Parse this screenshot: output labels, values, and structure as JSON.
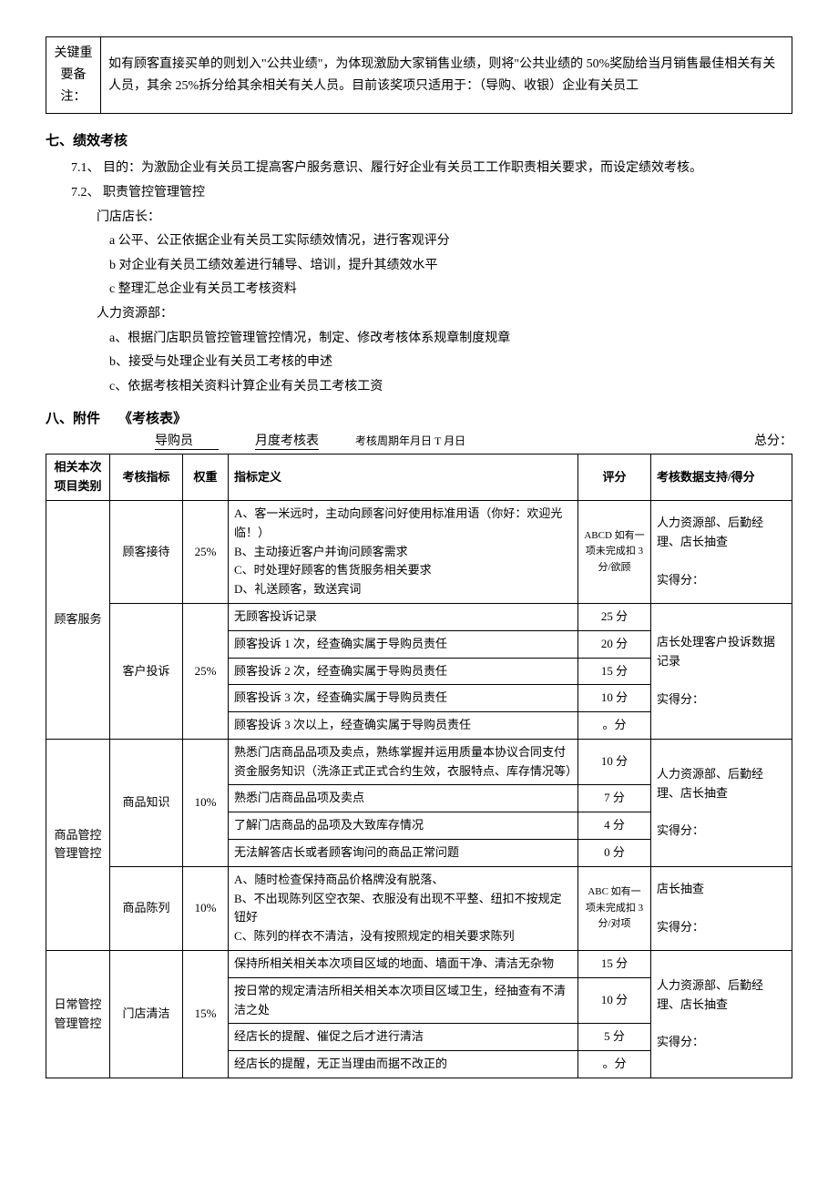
{
  "note_table": {
    "label": "关键重要备注：",
    "content": "如有顾客直接买单的则划入\"公共业绩\"，为体现激励大家销售业绩，则将\"公共业绩的 50%奖励给当月销售最佳相关有关人员，其余 25%拆分给其余相关有关人员。目前该奖项只适用于：（导购、收银）企业有关员工"
  },
  "section7": {
    "title": "七、绩效考核",
    "p71": "7.1、 目的：为激励企业有关员工提高客户服务意识、履行好企业有关员工工作职责相关要求，而设定绩效考核。",
    "p72": "7.2、 职责管控管理管控",
    "p72_a": "门店店长：",
    "p72_a1": "a 公平、公正依据企业有关员工实际绩效情况，进行客观评分",
    "p72_a2": "b 对企业有关员工绩效差进行辅导、培训，提升其绩效水平",
    "p72_a3": "c 整理汇总企业有关员工考核资料",
    "p72_b": "人力资源部：",
    "p72_b1": "a、根据门店职员管控管理管控情况，制定、修改考核体系规章制度规章",
    "p72_b2": "b、接受与处理企业有关员工考核的申述",
    "p72_b3": "c、依据考核相关资料计算企业有关员工考核工资"
  },
  "section8": {
    "title_a": "八、附件",
    "title_b": "《考核表》",
    "sub_role": "导购员",
    "sub_name": "月度考核表",
    "sub_period": "考核周期年月日 T 月日",
    "sub_total": "总分："
  },
  "eval": {
    "headers": {
      "cat": "相关本次项目类别",
      "ind": "考核指标",
      "wt": "权重",
      "def": "指标定义",
      "sc": "评分",
      "sup": "考核数据支持/得分"
    },
    "cat1": {
      "name": "顾客服务",
      "ind1": {
        "name": "顾客接待",
        "weight": "25%",
        "def": "A、客一米远时，主动向顾客问好使用标准用语（你好：欢迎光临！）\nB、主动接近客户并询问顾客需求\nC、时处理好顾客的售货服务相关要求\nD、礼送顾客，致送宾词",
        "score": "ABCD 如有一项未完成扣 3 分/欲顾",
        "support": "人力资源部、后勤经理、店长抽查\n\n实得分："
      },
      "ind2": {
        "name": "客户投诉",
        "weight": "25%",
        "rows": [
          {
            "def": "无顾客投诉记录",
            "score": "25 分"
          },
          {
            "def": "顾客投诉 1 次，经查确实属于导购员责任",
            "score": "20 分"
          },
          {
            "def": "顾客投诉 2 次，经查确实属于导购员责任",
            "score": "15 分"
          },
          {
            "def": "顾客投诉 3 次，经查确实属于导购员责任",
            "score": "10 分"
          },
          {
            "def": "顾客投诉 3 次以上，经查确实属于导购员责任",
            "score": "。分"
          }
        ],
        "support": "店长处理客户投诉数据记录\n\n实得分："
      }
    },
    "cat2": {
      "name": "商品管控管理管控",
      "ind1": {
        "name": "商品知识",
        "weight": "10%",
        "rows": [
          {
            "def": "熟悉门店商品品项及卖点，熟练掌握并运用质量本协议合同支付资金服务知识（洗涤正式正式合约生效，衣服特点、库存情况等）",
            "score": "10 分"
          },
          {
            "def": "熟悉门店商品品项及卖点",
            "score": "7 分"
          },
          {
            "def": "了解门店商品的品项及大致库存情况",
            "score": "4 分"
          },
          {
            "def": "无法解答店长或者顾客询问的商品正常问题",
            "score": "0 分"
          }
        ],
        "support": "人力资源部、后勤经理、店长抽查\n\n实得分："
      },
      "ind2": {
        "name": "商品陈列",
        "weight": "10%",
        "def": "A、随时检查保持商品价格牌没有脱落、\nB、不出现陈列区空衣架、衣服没有出现不平整、纽扣不按规定钮好\nC、陈列的样衣不清洁，没有按照规定的相关要求陈列",
        "score": "ABC 如有一项未完成扣 3 分/对项",
        "support": "店长抽查\n\n实得分："
      }
    },
    "cat3": {
      "name": "日常管控管理管控",
      "ind1": {
        "name": "门店清洁",
        "weight": "15%",
        "rows": [
          {
            "def": "保持所相关相关本次项目区域的地面、墙面干净、清洁无杂物",
            "score": "15 分"
          },
          {
            "def": "按日常的规定清洁所相关相关本次项目区域卫生，经抽查有不清洁之处",
            "score": "10 分"
          },
          {
            "def": "经店长的提醒、催促之后才进行清洁",
            "score": "5 分"
          },
          {
            "def": "经店长的提醒，无正当理由而据不改正的",
            "score": "。分"
          }
        ],
        "support": "人力资源部、后勤经理、店长抽查\n\n实得分："
      }
    }
  }
}
